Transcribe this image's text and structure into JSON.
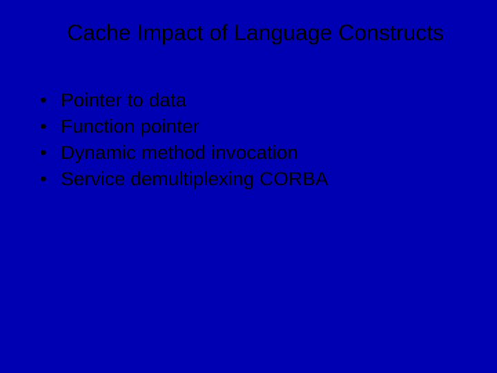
{
  "background_color": "#0000b3",
  "text_color": "#000000",
  "title": {
    "text": "Cache Impact of Language Constructs",
    "fontsize": 32
  },
  "bullets": {
    "marker": "•",
    "fontsize": 28,
    "items": [
      "Pointer to data",
      "Function pointer",
      "Dynamic method invocation",
      "Service demultiplexing CORBA"
    ]
  }
}
